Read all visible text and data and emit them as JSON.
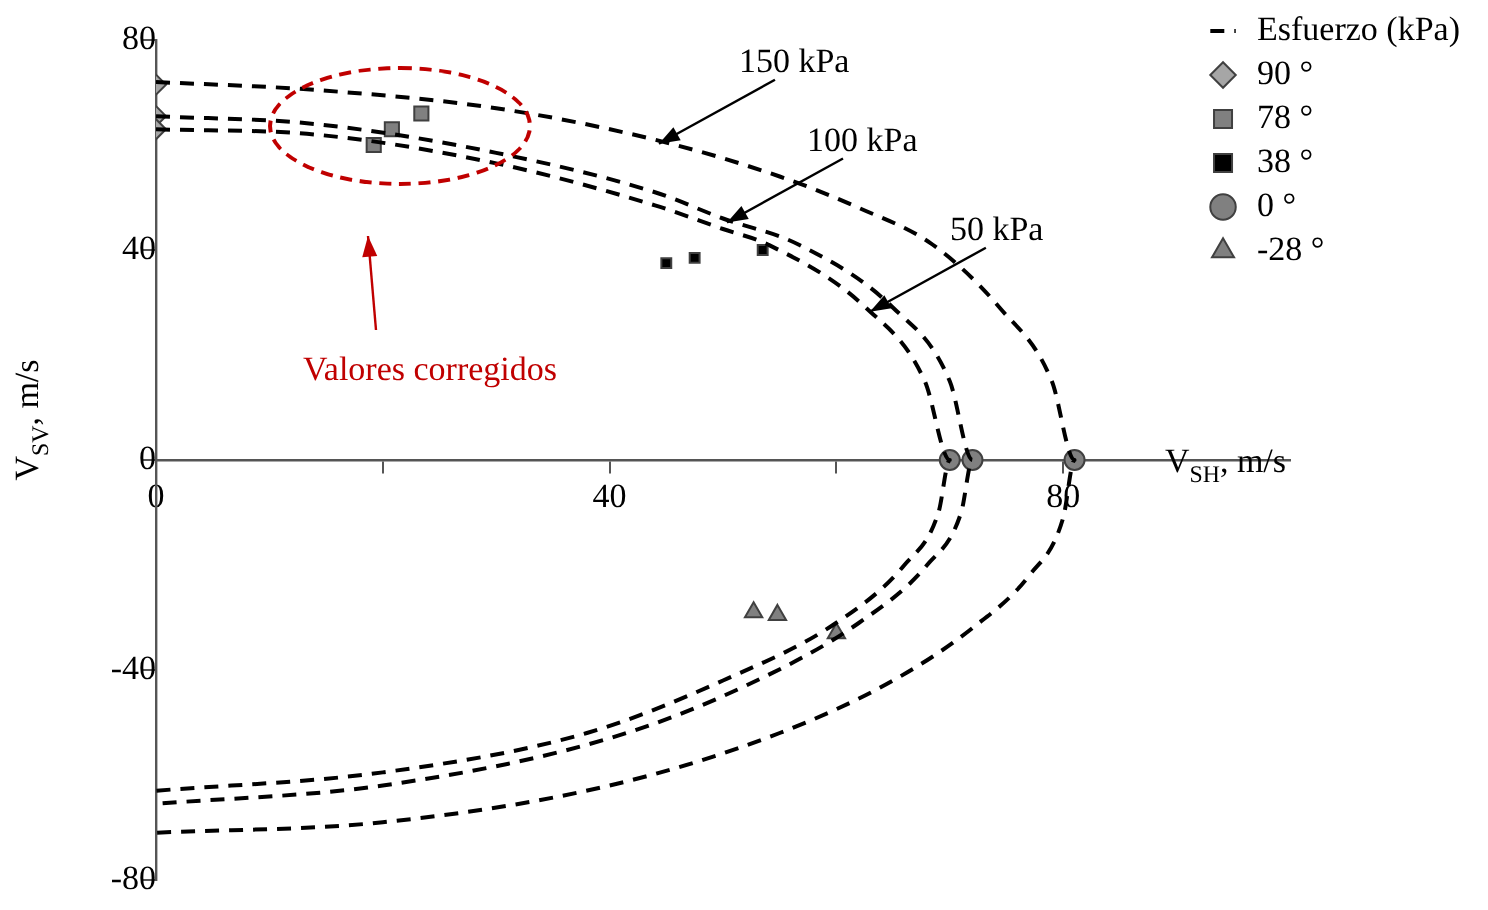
{
  "chart_data": {
    "type": "scatter",
    "xlabel": "V$_{SH}$, m/s",
    "ylabel": "V$_{SV}$, m/s",
    "legend_title": "Esfuerzo (kPa)",
    "legend": "top right",
    "grid": false,
    "xlim": [
      0,
      100
    ],
    "xticks": [
      0,
      {
        "value": 20,
        "label": null
      },
      40,
      {
        "value": 60,
        "label": null
      },
      80
    ],
    "ylim": [
      -80,
      80
    ],
    "yticks": [
      -80,
      -40,
      0,
      40,
      80
    ],
    "series": [
      {
        "type": "line",
        "color": "#000000",
        "line_style": "dashed",
        "marker": "none",
        "x": [
          0,
          14,
          30,
          44,
          55,
          62,
          68.5,
          74.4,
          79,
          81,
          80,
          77,
          72,
          65,
          55,
          40,
          20,
          0
        ],
        "values": [
          72,
          70.5,
          67,
          61,
          54,
          48,
          41,
          29,
          15,
          0,
          -11,
          -22,
          -32,
          -42,
          -52,
          -62,
          -69,
          -71
        ]
      },
      {
        "type": "line",
        "color": "#000000",
        "line_style": "dashed",
        "marker": "none",
        "x": [
          0,
          14,
          30,
          44,
          50,
          56.7,
          65,
          70,
          72,
          71,
          68,
          62,
          52,
          40,
          20,
          0
        ],
        "values": [
          65.5,
          64,
          58.5,
          51,
          46,
          41,
          29,
          15,
          0,
          -10,
          -20,
          -31,
          -43,
          -53,
          -62,
          -65.5
        ]
      },
      {
        "type": "line",
        "color": "#000000",
        "line_style": "dashed",
        "marker": "none",
        "x": [
          0,
          14,
          30,
          44,
          50,
          54,
          62.6,
          67.8,
          70,
          69,
          66,
          60,
          50,
          38,
          20,
          0
        ],
        "values": [
          63,
          62,
          56.5,
          48.5,
          44,
          41,
          29,
          15,
          0,
          -10,
          -20,
          -31,
          -42,
          -52,
          -59.5,
          -63
        ]
      },
      {
        "name": "90 °",
        "color": "#a6a6a6",
        "marker": "diamond",
        "x": [
          0,
          0,
          0
        ],
        "values": [
          71.5,
          65.5,
          63
        ]
      },
      {
        "name": "78 °",
        "color": "#808080",
        "marker": "square",
        "x": [
          19.2,
          20.8,
          23.4
        ],
        "values": [
          60,
          63,
          66
        ]
      },
      {
        "name": "38 °",
        "color": "#000000",
        "marker": "square",
        "x": [
          45,
          47.5,
          53.5
        ],
        "values": [
          37.5,
          38.5,
          40
        ]
      },
      {
        "name": "0 °",
        "color": "#808080",
        "marker": "circle",
        "x": [
          70,
          72,
          81
        ],
        "values": [
          0,
          0,
          0
        ]
      },
      {
        "name": "-28 °",
        "color": "#808080",
        "marker": "triangle",
        "x": [
          52.7,
          54.8,
          60
        ],
        "values": [
          -29,
          -29.5,
          -33
        ]
      }
    ],
    "annotations": [
      {
        "text": "150 kPa",
        "x": 44,
        "y": 61
      },
      {
        "text": "100 kPa",
        "x": 50,
        "y": 46
      },
      {
        "text": "50 kPa",
        "x": 62.6,
        "y": 29
      },
      "Valores corregidos"
    ]
  }
}
